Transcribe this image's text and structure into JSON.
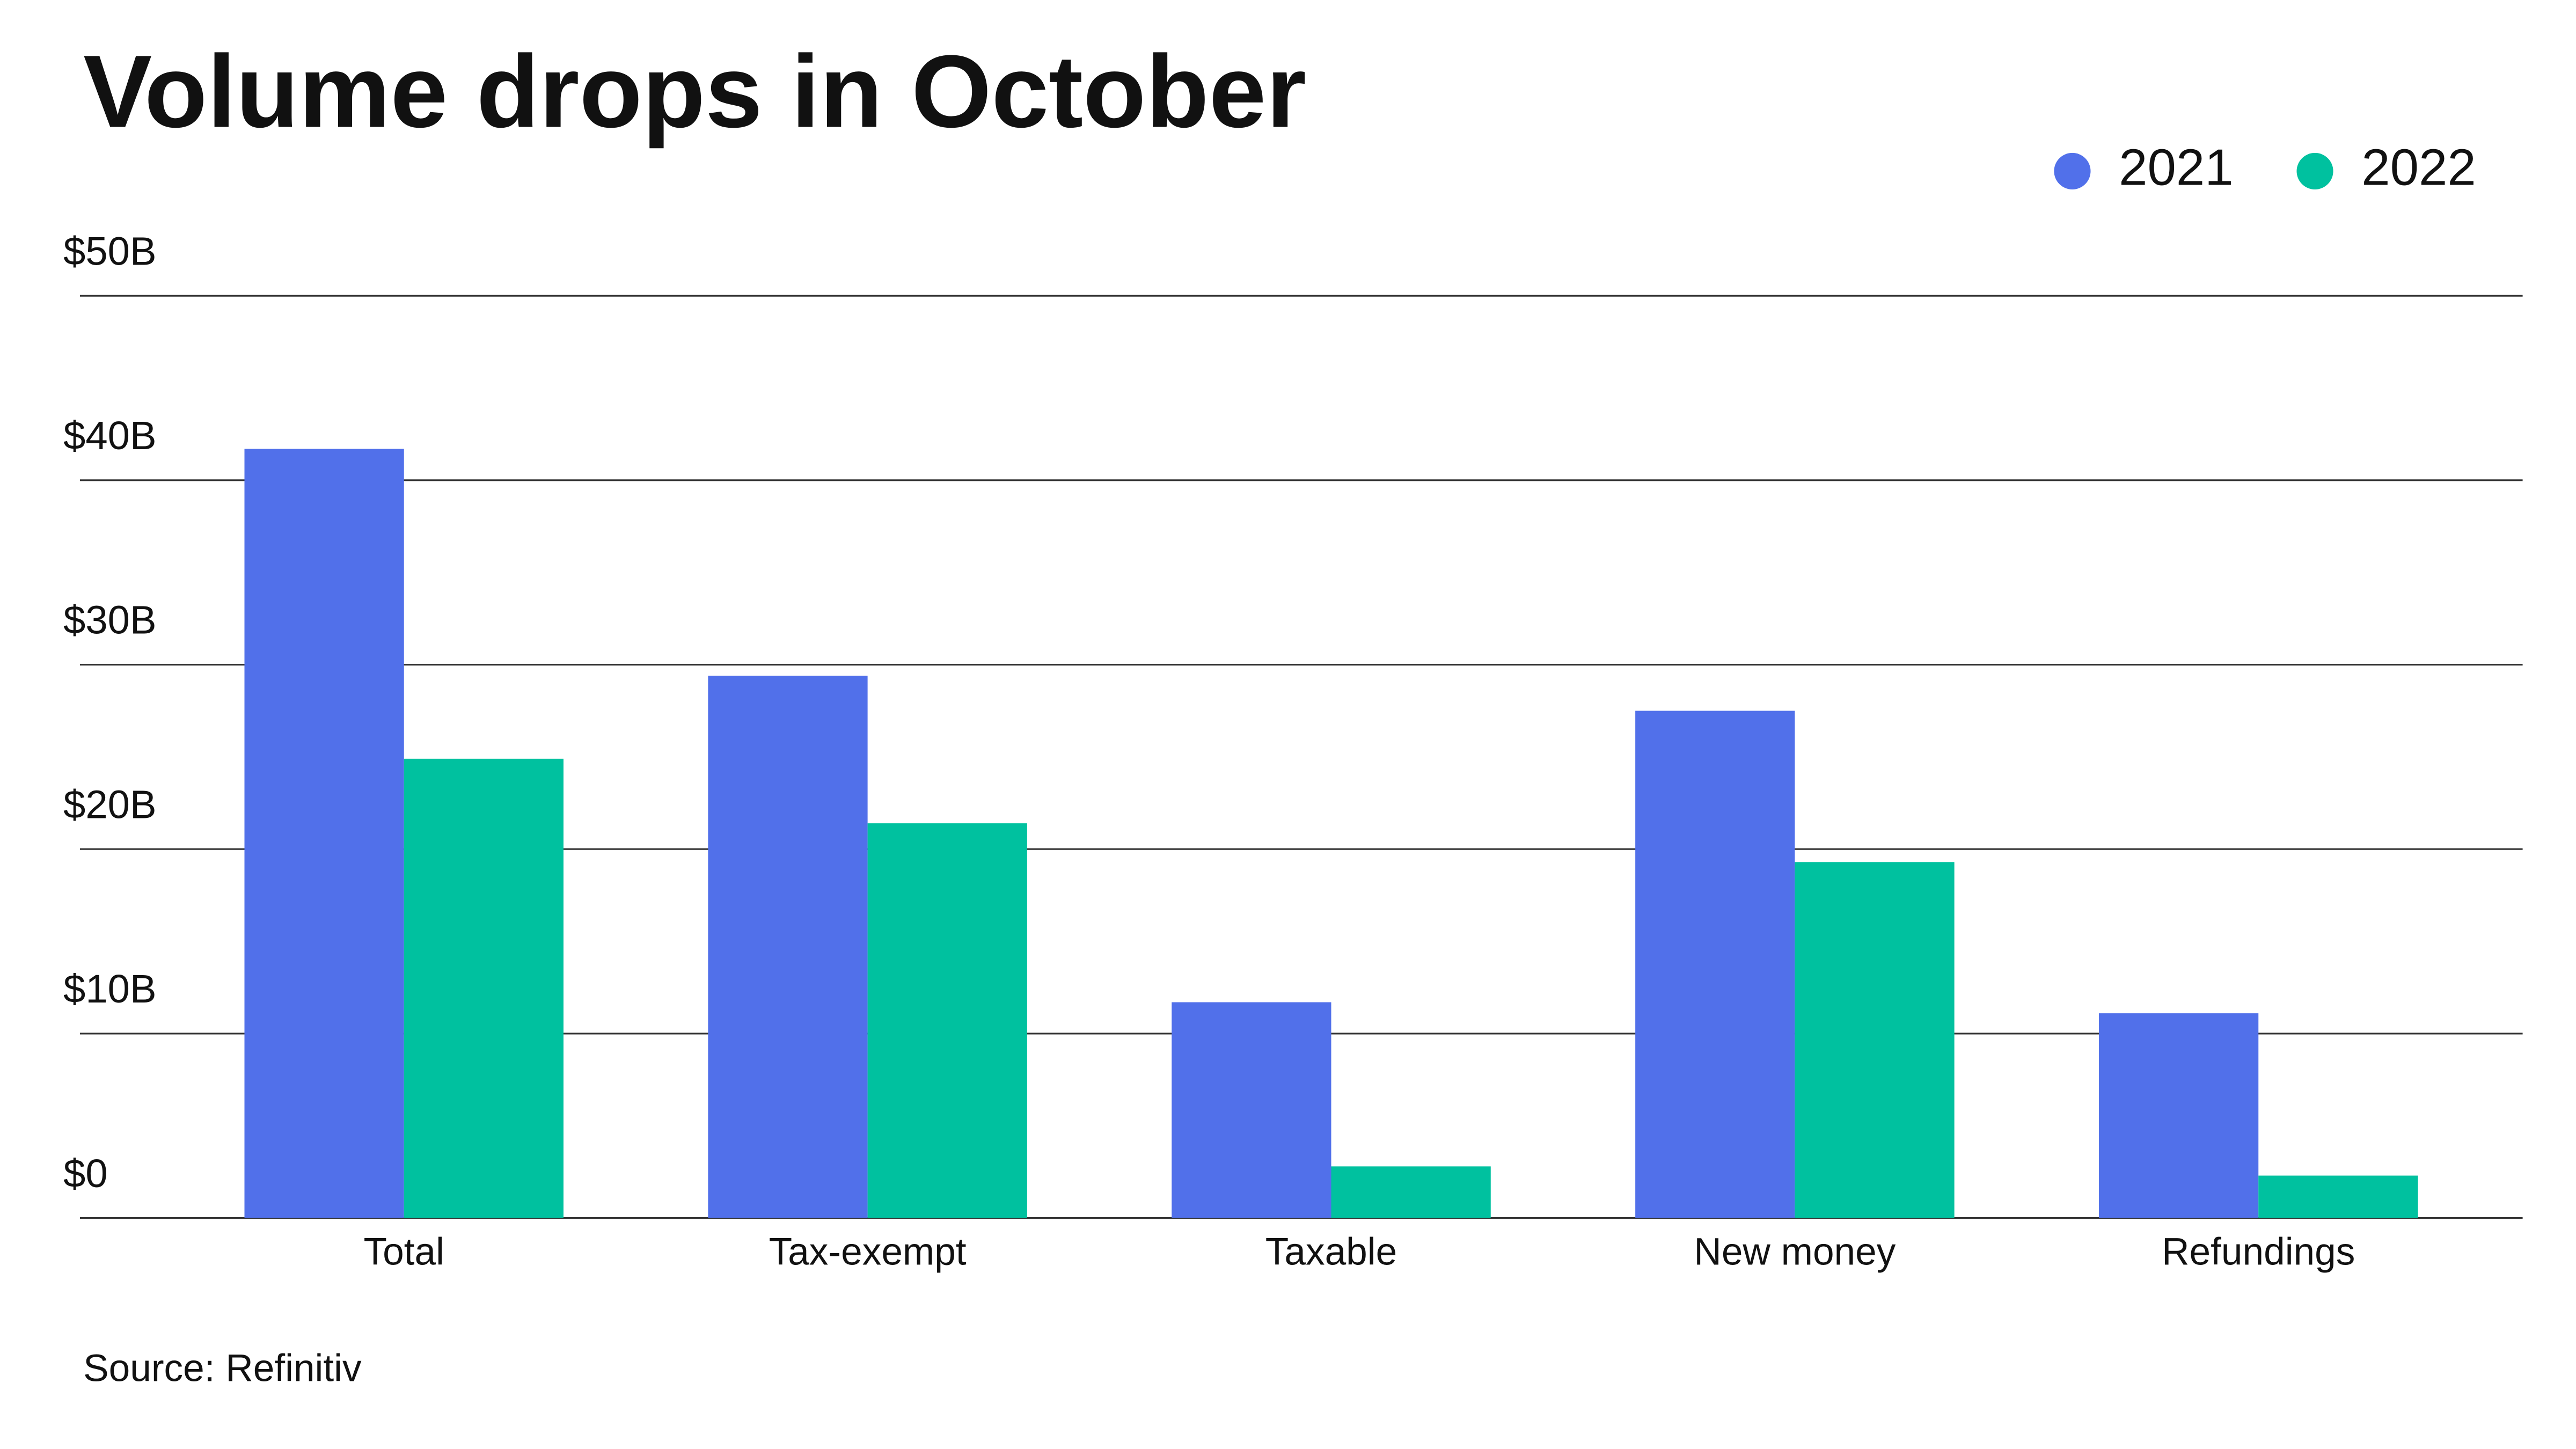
{
  "chart_data": {
    "type": "bar",
    "title": "Volume drops in October",
    "source": "Source: Refinitiv",
    "categories": [
      "Total",
      "Tax-exempt",
      "Taxable",
      "New money",
      "Refundings"
    ],
    "series": [
      {
        "name": "2021",
        "color": "#5170ea",
        "values": [
          41.7,
          29.4,
          11.7,
          27.5,
          11.1
        ]
      },
      {
        "name": "2022",
        "color": "#00c19f",
        "values": [
          24.9,
          21.4,
          2.8,
          19.3,
          2.3
        ]
      }
    ],
    "ylim": [
      0,
      50
    ],
    "yticks": [
      {
        "value": 0,
        "label": "$0"
      },
      {
        "value": 10,
        "label": "$10B"
      },
      {
        "value": 20,
        "label": "$20B"
      },
      {
        "value": 30,
        "label": "$30B"
      },
      {
        "value": 40,
        "label": "$40B"
      },
      {
        "value": 50,
        "label": "$50B"
      }
    ],
    "grid": true,
    "legend": "top-right"
  }
}
